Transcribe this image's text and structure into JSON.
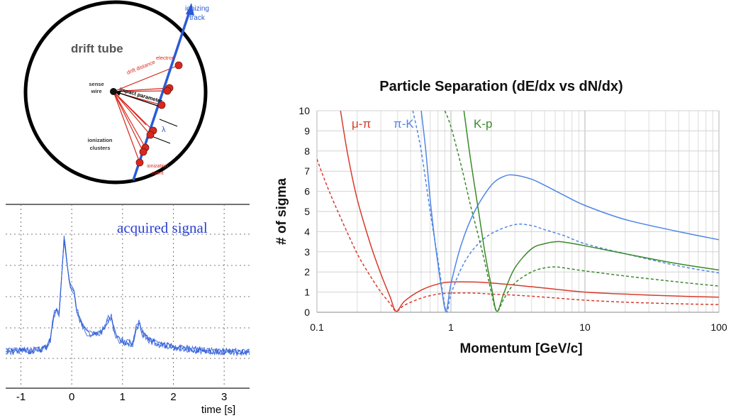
{
  "diagram": {
    "title": "drift tube",
    "track_label": [
      "ionizing",
      "track"
    ],
    "sense_wire_label": [
      "sense",
      "wire"
    ],
    "impact_parameter_label": "impact parameter",
    "drift_distance_label": "drift distance",
    "electron_label": "electron",
    "lambda_label": "λ",
    "clusters_label": [
      "ionization",
      "clusters"
    ],
    "event_label": [
      "ionization",
      "event"
    ],
    "colors": {
      "track": "#2a5bd7",
      "cluster": "#d8281c",
      "drift_line": "#d8281c",
      "tube": "#000000"
    }
  },
  "chart_data": [
    {
      "type": "line",
      "title": "",
      "annotation": "acquired signal",
      "xlabel": "time [s]",
      "ylabel": "",
      "xlim": [
        -1.3,
        3.5
      ],
      "x_ticks": [
        "-1",
        "0",
        "1",
        "2",
        "3"
      ],
      "x_tick_values": [
        -1,
        0,
        1,
        2,
        3
      ],
      "grid": true,
      "series": [
        {
          "color": "#2a5bd7",
          "x": [
            -1.3,
            -0.7,
            -0.5,
            -0.42,
            -0.36,
            -0.3,
            -0.25,
            -0.2,
            -0.15,
            -0.1,
            -0.05,
            0.0,
            0.05,
            0.1,
            0.2,
            0.3,
            0.45,
            0.55,
            0.65,
            0.72,
            0.78,
            0.82,
            0.87,
            0.92,
            1.0,
            1.1,
            1.2,
            1.27,
            1.32,
            1.4,
            1.5,
            1.7,
            2.0,
            2.5,
            3.0,
            3.5
          ],
          "y": [
            0.2,
            0.25,
            0.35,
            0.6,
            1.4,
            1.6,
            1.5,
            2.6,
            4.0,
            3.3,
            2.6,
            2.3,
            2.2,
            1.6,
            1.1,
            0.85,
            0.75,
            0.8,
            1.0,
            1.3,
            1.35,
            1.0,
            0.75,
            0.6,
            0.55,
            0.5,
            0.45,
            1.0,
            1.15,
            0.8,
            0.6,
            0.45,
            0.35,
            0.25,
            0.2,
            0.18
          ]
        }
      ]
    },
    {
      "type": "line",
      "title": "Particle Separation (dE/dx vs dN/dx)",
      "xlabel": "Momentum [GeV/c]",
      "ylabel": "# of sigma",
      "x_scale": "log",
      "xlim": [
        0.1,
        100
      ],
      "ylim": [
        0,
        10
      ],
      "x_ticks": [
        "0.1",
        "1",
        "10",
        "100"
      ],
      "x_tick_values": [
        0.1,
        1,
        10,
        100
      ],
      "y_ticks": [
        "0",
        "1",
        "2",
        "3",
        "4",
        "5",
        "6",
        "7",
        "8",
        "9",
        "10"
      ],
      "grid": true,
      "legend": [
        {
          "label": "μ-π",
          "color": "#d93a2b"
        },
        {
          "label": "π-K",
          "color": "#4f86e6"
        },
        {
          "label": "K-p",
          "color": "#3a8a2a"
        }
      ],
      "series": [
        {
          "pair": "μ-π",
          "style": "solid",
          "color": "#d93a2b",
          "x": [
            0.15,
            0.17,
            0.2,
            0.25,
            0.3,
            0.35,
            0.39,
            0.45,
            0.6,
            0.8,
            1.0,
            1.5,
            2.0,
            3.0,
            5.0,
            10,
            20,
            50,
            100
          ],
          "y": [
            10,
            7.8,
            5.6,
            3.4,
            1.9,
            0.8,
            0.05,
            0.55,
            1.1,
            1.4,
            1.5,
            1.5,
            1.45,
            1.35,
            1.2,
            1.0,
            0.9,
            0.8,
            0.75
          ]
        },
        {
          "pair": "μ-π",
          "style": "dashed",
          "color": "#d93a2b",
          "x": [
            0.1,
            0.12,
            0.15,
            0.2,
            0.25,
            0.3,
            0.35,
            0.39,
            0.45,
            0.6,
            0.8,
            1.0,
            1.5,
            2.0,
            3.0,
            5.0,
            10,
            20,
            50,
            100
          ],
          "y": [
            7.6,
            6.2,
            4.7,
            2.9,
            1.8,
            1.0,
            0.45,
            0.05,
            0.35,
            0.7,
            0.9,
            0.95,
            0.95,
            0.9,
            0.85,
            0.75,
            0.6,
            0.5,
            0.42,
            0.38
          ]
        },
        {
          "pair": "π-K",
          "style": "solid",
          "color": "#4f86e6",
          "x": [
            0.6,
            0.65,
            0.7,
            0.75,
            0.8,
            0.85,
            0.92,
            1.0,
            1.2,
            1.5,
            2.0,
            2.5,
            3.0,
            4.0,
            5.0,
            7.0,
            10,
            20,
            50,
            100
          ],
          "y": [
            10,
            8.0,
            5.6,
            3.8,
            2.4,
            1.2,
            0.05,
            1.4,
            3.4,
            5.0,
            6.3,
            6.75,
            6.8,
            6.6,
            6.3,
            5.8,
            5.3,
            4.6,
            4.0,
            3.6
          ]
        },
        {
          "pair": "π-K",
          "style": "dashed",
          "color": "#4f86e6",
          "x": [
            0.52,
            0.6,
            0.7,
            0.8,
            0.92,
            1.0,
            1.2,
            1.5,
            2.0,
            3.0,
            4.0,
            5.0,
            7.0,
            10,
            20,
            50,
            100
          ],
          "y": [
            10,
            8.0,
            5.0,
            2.6,
            0.05,
            0.9,
            2.2,
            3.2,
            3.9,
            4.35,
            4.3,
            4.1,
            3.8,
            3.4,
            2.9,
            2.3,
            1.95
          ]
        },
        {
          "pair": "K-p",
          "style": "solid",
          "color": "#3a8a2a",
          "x": [
            1.25,
            1.4,
            1.6,
            1.8,
            2.0,
            2.2,
            2.5,
            3.0,
            4.0,
            5.0,
            6.0,
            7.0,
            10,
            20,
            50,
            100
          ],
          "y": [
            10,
            7.6,
            5.1,
            2.9,
            1.3,
            0.05,
            1.0,
            2.2,
            3.15,
            3.4,
            3.5,
            3.48,
            3.3,
            2.9,
            2.4,
            2.1
          ]
        },
        {
          "pair": "K-p",
          "style": "dashed",
          "color": "#3a8a2a",
          "x": [
            0.9,
            1.0,
            1.2,
            1.4,
            1.6,
            1.8,
            2.0,
            2.2,
            2.5,
            3.0,
            4.0,
            5.0,
            6.0,
            7.0,
            10,
            20,
            50,
            100
          ],
          "y": [
            10,
            9.2,
            7.2,
            5.3,
            3.8,
            2.4,
            1.0,
            0.05,
            0.7,
            1.45,
            2.0,
            2.2,
            2.25,
            2.2,
            2.05,
            1.8,
            1.5,
            1.3
          ]
        }
      ]
    }
  ]
}
